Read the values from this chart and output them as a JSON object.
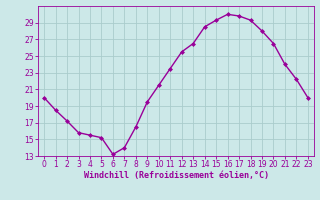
{
  "x": [
    0,
    1,
    2,
    3,
    4,
    5,
    6,
    7,
    8,
    9,
    10,
    11,
    12,
    13,
    14,
    15,
    16,
    17,
    18,
    19,
    20,
    21,
    22,
    23
  ],
  "y": [
    20.0,
    18.5,
    17.2,
    15.8,
    15.5,
    15.2,
    13.2,
    14.0,
    16.5,
    19.5,
    21.5,
    23.5,
    25.5,
    26.5,
    28.5,
    29.3,
    30.0,
    29.8,
    29.3,
    28.0,
    26.5,
    24.0,
    22.2,
    20.0
  ],
  "line_color": "#990099",
  "marker": "D",
  "marker_size": 2,
  "xlabel": "Windchill (Refroidissement éolien,°C)",
  "xlabel_fontsize": 6,
  "xlim": [
    -0.5,
    23.5
  ],
  "ylim": [
    13,
    31
  ],
  "yticks": [
    13,
    15,
    17,
    19,
    21,
    23,
    25,
    27,
    29
  ],
  "xtick_labels": [
    "0",
    "1",
    "2",
    "3",
    "4",
    "5",
    "6",
    "7",
    "8",
    "9",
    "10",
    "11",
    "12",
    "13",
    "14",
    "15",
    "16",
    "17",
    "18",
    "19",
    "20",
    "21",
    "22",
    "23"
  ],
  "grid_color": "#aacccc",
  "bg_color": "#cce8e8",
  "tick_fontsize": 5.5,
  "line_width": 1.0
}
